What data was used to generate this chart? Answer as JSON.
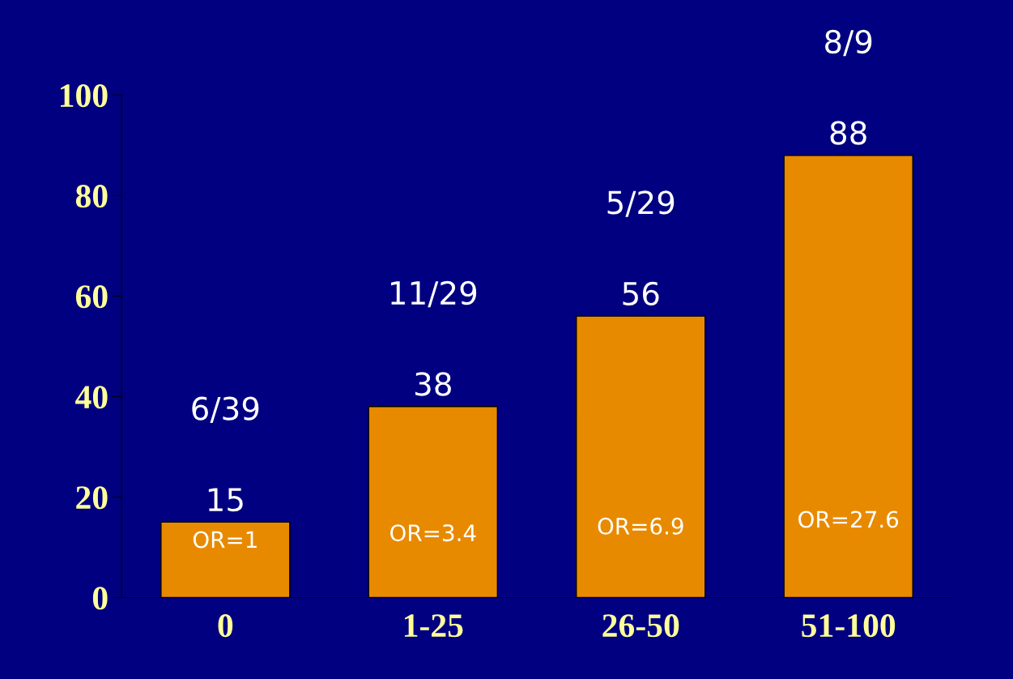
{
  "chart_data": {
    "type": "bar",
    "categories": [
      "0",
      "1-25",
      "26-50",
      "51-100"
    ],
    "values": [
      15,
      38,
      56,
      88
    ],
    "color": "#e88a00",
    "ylim": [
      0,
      100
    ],
    "yticks": [
      0,
      20,
      40,
      60,
      80,
      100
    ],
    "data_labels": true,
    "grid": false,
    "annotations": [
      "6/39",
      "11/29",
      "5/29",
      "8/9",
      "OR=1",
      "OR=3.4",
      "OR=6.9",
      "OR=27.6"
    ]
  }
}
